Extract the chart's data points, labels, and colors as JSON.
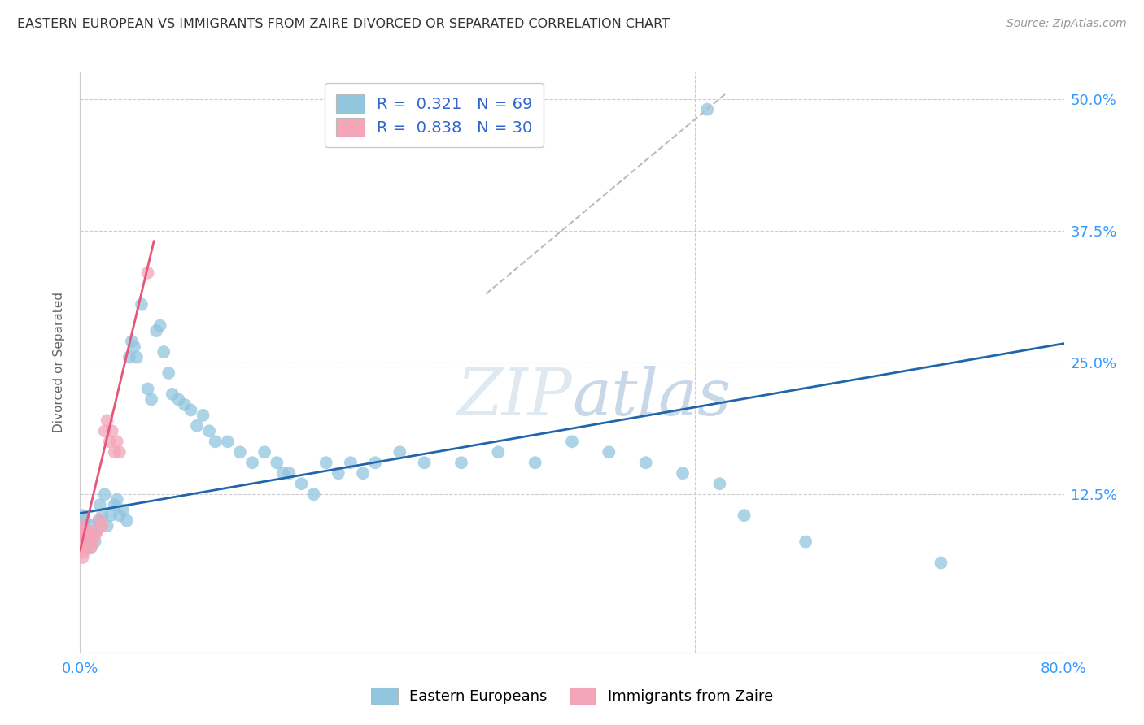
{
  "title": "EASTERN EUROPEAN VS IMMIGRANTS FROM ZAIRE DIVORCED OR SEPARATED CORRELATION CHART",
  "source": "Source: ZipAtlas.com",
  "ylabel_label": "Divorced or Separated",
  "legend_blue_r": "0.321",
  "legend_blue_n": "69",
  "legend_pink_r": "0.838",
  "legend_pink_n": "30",
  "blue_color": "#92c5de",
  "pink_color": "#f4a5b8",
  "trend_blue_color": "#2166ac",
  "trend_pink_color": "#e8547a",
  "trend_diag_color": "#bbbbbb",
  "xlim": [
    0.0,
    0.8
  ],
  "ylim": [
    -0.025,
    0.525
  ],
  "blue_points": [
    [
      0.002,
      0.105
    ],
    [
      0.003,
      0.095
    ],
    [
      0.004,
      0.1
    ],
    [
      0.005,
      0.085
    ],
    [
      0.006,
      0.075
    ],
    [
      0.007,
      0.09
    ],
    [
      0.008,
      0.085
    ],
    [
      0.009,
      0.075
    ],
    [
      0.01,
      0.095
    ],
    [
      0.012,
      0.08
    ],
    [
      0.013,
      0.09
    ],
    [
      0.015,
      0.1
    ],
    [
      0.016,
      0.115
    ],
    [
      0.018,
      0.105
    ],
    [
      0.02,
      0.125
    ],
    [
      0.022,
      0.095
    ],
    [
      0.025,
      0.105
    ],
    [
      0.028,
      0.115
    ],
    [
      0.03,
      0.12
    ],
    [
      0.032,
      0.105
    ],
    [
      0.035,
      0.11
    ],
    [
      0.038,
      0.1
    ],
    [
      0.04,
      0.255
    ],
    [
      0.042,
      0.27
    ],
    [
      0.044,
      0.265
    ],
    [
      0.046,
      0.255
    ],
    [
      0.05,
      0.305
    ],
    [
      0.055,
      0.225
    ],
    [
      0.058,
      0.215
    ],
    [
      0.062,
      0.28
    ],
    [
      0.065,
      0.285
    ],
    [
      0.068,
      0.26
    ],
    [
      0.072,
      0.24
    ],
    [
      0.075,
      0.22
    ],
    [
      0.08,
      0.215
    ],
    [
      0.085,
      0.21
    ],
    [
      0.09,
      0.205
    ],
    [
      0.095,
      0.19
    ],
    [
      0.1,
      0.2
    ],
    [
      0.105,
      0.185
    ],
    [
      0.11,
      0.175
    ],
    [
      0.12,
      0.175
    ],
    [
      0.13,
      0.165
    ],
    [
      0.14,
      0.155
    ],
    [
      0.15,
      0.165
    ],
    [
      0.16,
      0.155
    ],
    [
      0.165,
      0.145
    ],
    [
      0.17,
      0.145
    ],
    [
      0.18,
      0.135
    ],
    [
      0.19,
      0.125
    ],
    [
      0.2,
      0.155
    ],
    [
      0.21,
      0.145
    ],
    [
      0.22,
      0.155
    ],
    [
      0.23,
      0.145
    ],
    [
      0.24,
      0.155
    ],
    [
      0.26,
      0.165
    ],
    [
      0.28,
      0.155
    ],
    [
      0.31,
      0.155
    ],
    [
      0.34,
      0.165
    ],
    [
      0.37,
      0.155
    ],
    [
      0.4,
      0.175
    ],
    [
      0.43,
      0.165
    ],
    [
      0.46,
      0.155
    ],
    [
      0.49,
      0.145
    ],
    [
      0.52,
      0.135
    ],
    [
      0.54,
      0.105
    ],
    [
      0.59,
      0.08
    ],
    [
      0.7,
      0.06
    ],
    [
      0.51,
      0.49
    ]
  ],
  "pink_points": [
    [
      0.002,
      0.095
    ],
    [
      0.002,
      0.085
    ],
    [
      0.003,
      0.09
    ],
    [
      0.003,
      0.08
    ],
    [
      0.004,
      0.085
    ],
    [
      0.004,
      0.075
    ],
    [
      0.005,
      0.09
    ],
    [
      0.005,
      0.08
    ],
    [
      0.006,
      0.085
    ],
    [
      0.006,
      0.075
    ],
    [
      0.007,
      0.09
    ],
    [
      0.007,
      0.08
    ],
    [
      0.008,
      0.085
    ],
    [
      0.009,
      0.075
    ],
    [
      0.01,
      0.08
    ],
    [
      0.012,
      0.085
    ],
    [
      0.014,
      0.09
    ],
    [
      0.016,
      0.1
    ],
    [
      0.018,
      0.095
    ],
    [
      0.02,
      0.185
    ],
    [
      0.022,
      0.195
    ],
    [
      0.024,
      0.175
    ],
    [
      0.026,
      0.185
    ],
    [
      0.028,
      0.165
    ],
    [
      0.03,
      0.175
    ],
    [
      0.032,
      0.165
    ],
    [
      0.055,
      0.335
    ],
    [
      0.002,
      0.065
    ],
    [
      0.003,
      0.07
    ],
    [
      0.004,
      0.075
    ]
  ],
  "blue_trend_x": [
    0.0,
    0.8
  ],
  "blue_trend_y": [
    0.107,
    0.268
  ],
  "pink_trend_x": [
    0.0,
    0.06
  ],
  "pink_trend_y": [
    0.072,
    0.365
  ],
  "diag_trend_x": [
    0.33,
    0.525
  ],
  "diag_trend_y": [
    0.315,
    0.505
  ]
}
